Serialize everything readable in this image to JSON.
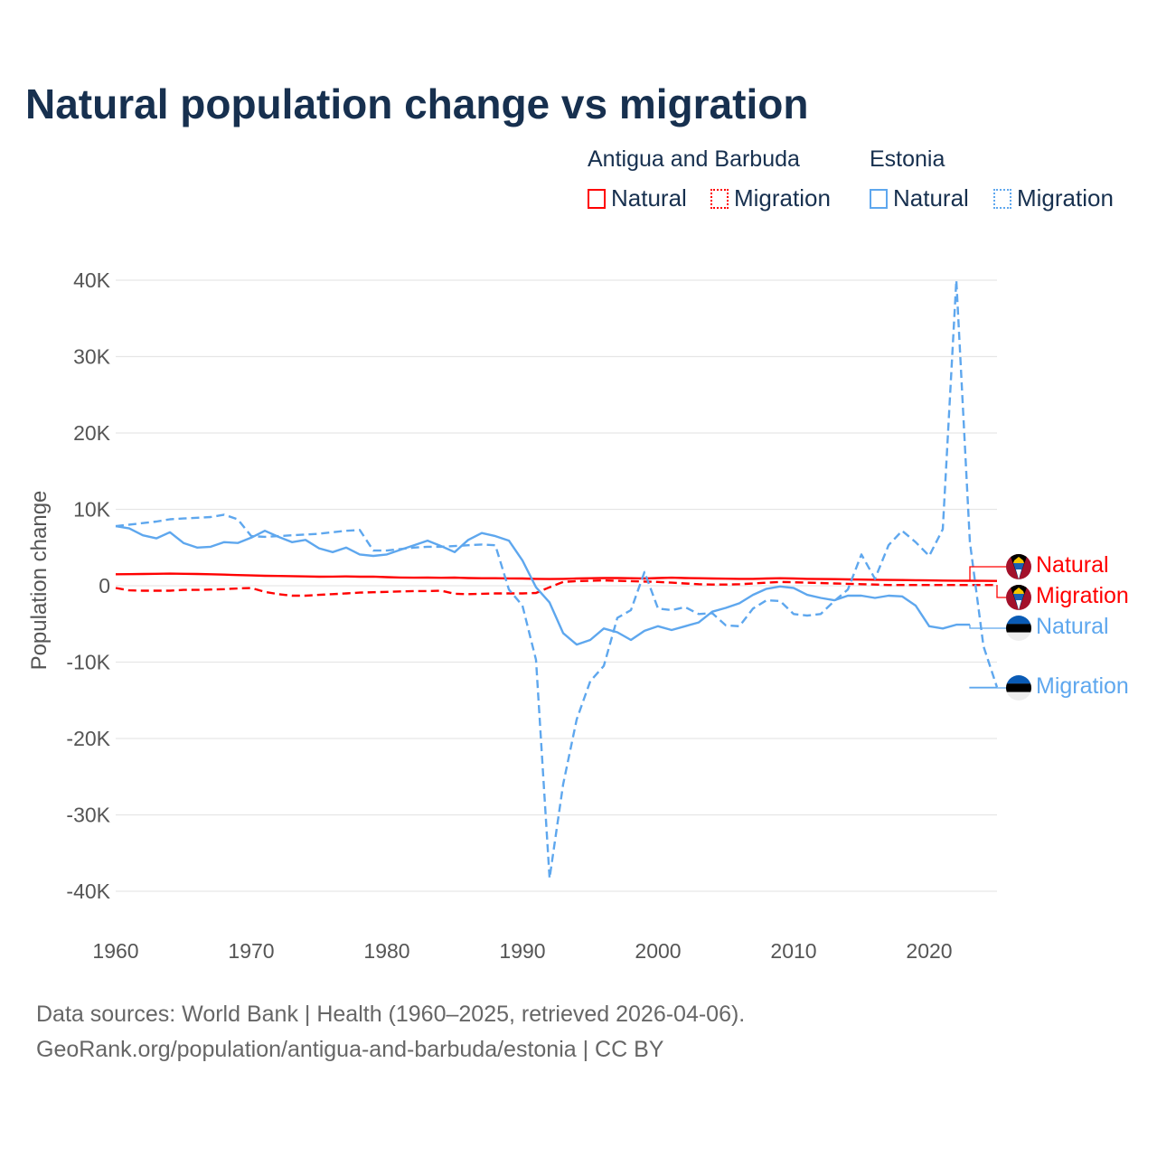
{
  "chart_data": {
    "type": "line",
    "title": "Natural population change vs migration",
    "ylabel": "Population change",
    "xlabel": "",
    "xlim": [
      1960,
      2025
    ],
    "ylim": [
      -40000,
      40000
    ],
    "x_ticks": [
      1960,
      1970,
      1980,
      1990,
      2000,
      2010,
      2020
    ],
    "x_tick_labels": [
      "1960",
      "1970",
      "1980",
      "1990",
      "2000",
      "2010",
      "2020"
    ],
    "y_ticks": [
      40000,
      30000,
      20000,
      10000,
      0,
      -10000,
      -20000,
      -30000,
      -40000
    ],
    "y_tick_labels": [
      "40K",
      "30K",
      "20K",
      "10K",
      "0",
      "-10K",
      "-20K",
      "-30K",
      "-40K"
    ],
    "grid": true,
    "start_year": 1960,
    "legend": {
      "placement": "top-right",
      "groups": [
        {
          "country": "Antigua and Barbuda",
          "items": [
            "Natural",
            "Migration"
          ]
        },
        {
          "country": "Estonia",
          "items": [
            "Natural",
            "Migration"
          ]
        }
      ]
    },
    "series": [
      {
        "name": "Antigua and Barbuda Natural",
        "label": "Natural",
        "country": "Antigua and Barbuda",
        "color": "#ff0000",
        "dash": "solid",
        "values": [
          1500,
          1520,
          1540,
          1560,
          1580,
          1560,
          1540,
          1500,
          1450,
          1400,
          1350,
          1300,
          1280,
          1250,
          1220,
          1180,
          1200,
          1220,
          1180,
          1200,
          1120,
          1080,
          1050,
          1060,
          1040,
          1060,
          1000,
          980,
          980,
          960,
          950,
          900,
          880,
          900,
          950,
          980,
          1000,
          1000,
          980,
          950,
          1000,
          1050,
          1000,
          980,
          950,
          920,
          900,
          900,
          950,
          980,
          950,
          900,
          880,
          860,
          830,
          800,
          780,
          760,
          740,
          720,
          700,
          680,
          660,
          650,
          640,
          630
        ]
      },
      {
        "name": "Antigua and Barbuda Migration",
        "label": "Migration",
        "country": "Antigua and Barbuda",
        "color": "#ff0000",
        "dash": "dashed",
        "values": [
          -300,
          -600,
          -650,
          -650,
          -650,
          -550,
          -550,
          -500,
          -450,
          -350,
          -300,
          -800,
          -1100,
          -1300,
          -1300,
          -1200,
          -1100,
          -1000,
          -900,
          -850,
          -800,
          -750,
          -700,
          -700,
          -650,
          -1050,
          -1100,
          -1050,
          -1000,
          -1000,
          -1000,
          -950,
          -200,
          500,
          600,
          650,
          700,
          650,
          600,
          550,
          500,
          400,
          300,
          200,
          150,
          150,
          200,
          300,
          400,
          500,
          450,
          400,
          350,
          300,
          250,
          200,
          150,
          100,
          100,
          100,
          100,
          100,
          100,
          100,
          100,
          100
        ]
      },
      {
        "name": "Estonia Natural",
        "label": "Natural",
        "country": "Estonia",
        "color": "#5ea7ee",
        "dash": "solid",
        "values": [
          7800,
          7500,
          6600,
          6200,
          7000,
          5600,
          5000,
          5100,
          5700,
          5600,
          6300,
          7200,
          6400,
          5700,
          6000,
          4900,
          4400,
          5000,
          4100,
          3900,
          4100,
          4700,
          5300,
          5900,
          5200,
          4400,
          6000,
          6900,
          6500,
          5900,
          3300,
          -200,
          -2200,
          -6200,
          -7700,
          -7100,
          -5600,
          -6100,
          -7100,
          -5900,
          -5300,
          -5800,
          -5300,
          -4800,
          -3400,
          -2900,
          -2300,
          -1200,
          -400,
          -100,
          -300,
          -1200,
          -1600,
          -1900,
          -1300,
          -1300,
          -1600,
          -1300,
          -1400,
          -2600,
          -5300,
          -5600,
          -5100,
          -5100
        ]
      },
      {
        "name": "Estonia Migration",
        "label": "Migration",
        "country": "Estonia",
        "color": "#5ea7ee",
        "dash": "dashed",
        "values": [
          7800,
          8000,
          8200,
          8400,
          8700,
          8800,
          8900,
          9000,
          9300,
          8700,
          6500,
          6400,
          6500,
          6600,
          6700,
          6800,
          7000,
          7200,
          7300,
          4600,
          4600,
          4800,
          5000,
          5100,
          5100,
          5200,
          5300,
          5400,
          5300,
          -500,
          -2600,
          -9700,
          -38300,
          -26000,
          -17500,
          -12500,
          -10500,
          -4200,
          -3200,
          1800,
          -3000,
          -3200,
          -2800,
          -3700,
          -3600,
          -5200,
          -5300,
          -3000,
          -1900,
          -2000,
          -3700,
          -3900,
          -3700,
          -2000,
          -500,
          4100,
          900,
          5300,
          7200,
          5700,
          3900,
          7400,
          40000,
          5700,
          -7900,
          -13300
        ]
      }
    ]
  },
  "footer": {
    "line1": "Data sources: World Bank | Health (1960–2025, retrieved 2026-04-06).",
    "line2": "GeoRank.org/population/antigua-and-barbuda/estonia | CC BY"
  },
  "flags": {
    "Antigua and Barbuda": "antigua-flag-icon",
    "Estonia": "estonia-flag-icon"
  }
}
